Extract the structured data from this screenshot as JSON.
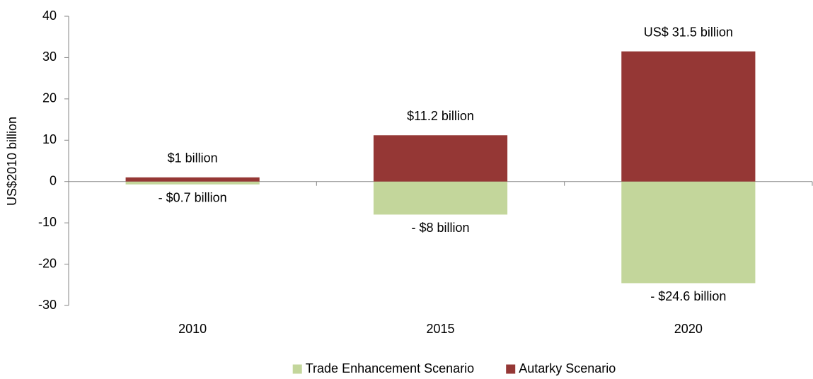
{
  "chart_data": {
    "type": "bar",
    "stacked": true,
    "y_label": "US$2010  billion",
    "categories": [
      "2010",
      "2015",
      "2020"
    ],
    "series": [
      {
        "name": "Trade Enhancement Scenario",
        "color": "#c3d69b",
        "values": [
          -0.7,
          -8,
          -24.6
        ],
        "value_labels": [
          "- $0.7 billion",
          "- $8 billion",
          "- $24.6 billion"
        ]
      },
      {
        "name": "Autarky Scenario",
        "color": "#953735",
        "values": [
          1,
          11.2,
          31.5
        ],
        "value_labels": [
          "$1 billion",
          "$11.2 billion",
          "US$ 31.5 billion"
        ]
      }
    ],
    "ylim": [
      -30,
      40
    ],
    "yticks": [
      -30,
      -20,
      -10,
      0,
      10,
      20,
      30,
      40
    ],
    "grid": false,
    "legend": "bottom"
  }
}
